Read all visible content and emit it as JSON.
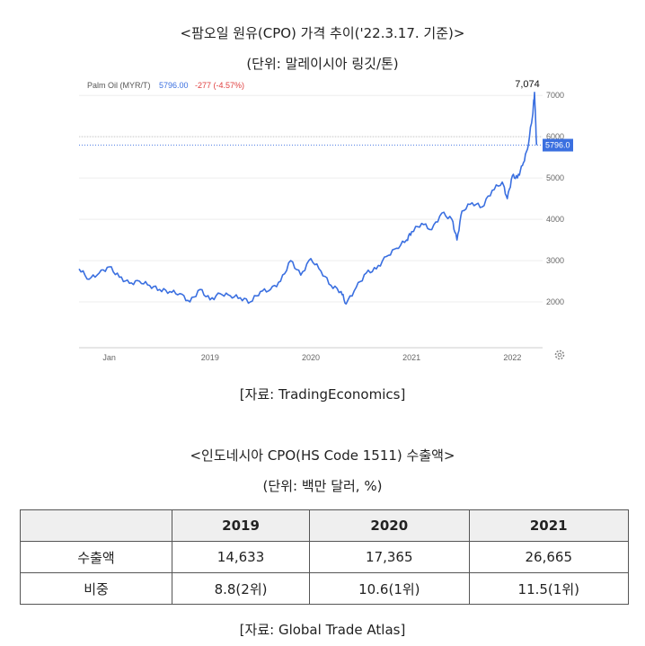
{
  "chart_title": "<팜오일 원유(CPO) 가격 추이('22.3.17. 기준)>",
  "chart_unit": "(단위: 말레이시아 링깃/톤)",
  "chart_source": "[자료: TradingEconomics]",
  "chart_data": {
    "type": "line",
    "ticker": "Palm Oil (MYR/T)",
    "last_value_label": "5796.00",
    "change_label": "-277 (-4.57%)",
    "peak_label": "7,074",
    "last_badge": "5796.0",
    "x_tick_labels": [
      "Jan",
      "2019",
      "2020",
      "2021",
      "2022"
    ],
    "y_tick_labels": [
      "2000",
      "3000",
      "4000",
      "5000",
      "6000",
      "7000"
    ],
    "ylim": [
      1000,
      7200
    ],
    "series": [
      {
        "color": "#3a6fe0",
        "x": [
          2017.7,
          2017.8,
          2017.9,
          2018.0,
          2018.1,
          2018.2,
          2018.3,
          2018.4,
          2018.5,
          2018.6,
          2018.7,
          2018.8,
          2018.9,
          2019.0,
          2019.1,
          2019.2,
          2019.3,
          2019.4,
          2019.5,
          2019.6,
          2019.7,
          2019.8,
          2019.9,
          2020.0,
          2020.1,
          2020.2,
          2020.3,
          2020.35,
          2020.45,
          2020.55,
          2020.65,
          2020.75,
          2020.85,
          2020.95,
          2021.0,
          2021.1,
          2021.2,
          2021.3,
          2021.4,
          2021.45,
          2021.5,
          2021.6,
          2021.7,
          2021.8,
          2021.9,
          2021.95,
          2022.0,
          2022.05,
          2022.1,
          2022.15,
          2022.2,
          2022.22,
          2022.24
        ],
        "y": [
          2800,
          2550,
          2700,
          2850,
          2600,
          2450,
          2500,
          2400,
          2300,
          2250,
          2200,
          2000,
          2300,
          2050,
          2200,
          2150,
          2100,
          2000,
          2250,
          2300,
          2500,
          3000,
          2650,
          3050,
          2750,
          2400,
          2250,
          1950,
          2350,
          2700,
          2800,
          3100,
          3300,
          3500,
          3700,
          3900,
          3750,
          4150,
          4000,
          3500,
          4200,
          4400,
          4300,
          4700,
          4900,
          4500,
          5050,
          5000,
          5300,
          5700,
          6500,
          7074,
          5796
        ]
      }
    ],
    "reference_lines": [
      {
        "y": 5796,
        "style": "dotted",
        "color": "#3a6fe0"
      },
      {
        "y": 6000,
        "style": "dotted",
        "color": "#b8b8b8"
      }
    ]
  },
  "table": {
    "title": "<인도네시아 CPO(HS Code 1511) 수출액>",
    "unit": "(단위: 백만 달러, %)",
    "headers": [
      "",
      "2019",
      "2020",
      "2021"
    ],
    "rows": [
      {
        "label": "수출액",
        "values": [
          "14,633",
          "17,365",
          "26,665"
        ]
      },
      {
        "label": "비중",
        "values": [
          "8.8(2위)",
          "10.6(1위)",
          "11.5(1위)"
        ]
      }
    ],
    "source": "[자료: Global Trade Atlas]"
  },
  "icons": {
    "settings": "gear-icon"
  }
}
